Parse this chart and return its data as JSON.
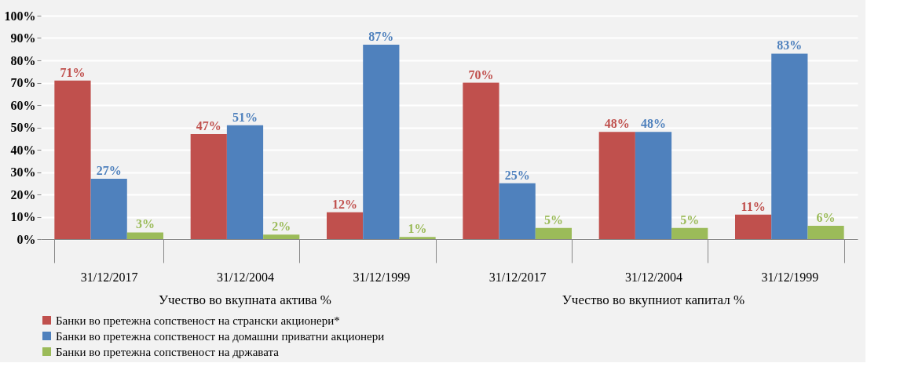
{
  "chart_data": {
    "type": "bar",
    "categories": [
      "31/12/2017",
      "31/12/2004",
      "31/12/1999",
      "31/12/2017",
      "31/12/2004",
      "31/12/1999"
    ],
    "series": [
      {
        "name": "Банки во претежна сопственост на странски акционери*",
        "color": "#c0504d",
        "values": [
          71,
          47,
          12,
          70,
          48,
          11
        ],
        "value_labels": [
          "71%",
          "47%",
          "12%",
          "70%",
          "48%",
          "11%"
        ]
      },
      {
        "name": "Банки во претежна сопственост на домашни приватни акционери",
        "color": "#4f81bd",
        "values": [
          27,
          51,
          87,
          25,
          48,
          83
        ],
        "value_labels": [
          "27%",
          "51%",
          "87%",
          "25%",
          "48%",
          "83%"
        ]
      },
      {
        "name": "Банки во претежна сопственост на државата",
        "color": "#9bbb59",
        "values": [
          3,
          2,
          1,
          5,
          5,
          6
        ],
        "value_labels": [
          "3%",
          "2%",
          "1%",
          "5%",
          "5%",
          "6%"
        ]
      }
    ],
    "ylim": [
      0,
      100
    ],
    "yticks": [
      {
        "value": 0,
        "label": "0%"
      },
      {
        "value": 10,
        "label": "10%"
      },
      {
        "value": 20,
        "label": "20%"
      },
      {
        "value": 30,
        "label": "30%"
      },
      {
        "value": 40,
        "label": "40%"
      },
      {
        "value": 50,
        "label": "50%"
      },
      {
        "value": 60,
        "label": "60%"
      },
      {
        "value": 70,
        "label": "70%"
      },
      {
        "value": 80,
        "label": "80%"
      },
      {
        "value": 90,
        "label": "90%"
      },
      {
        "value": 100,
        "label": "100%"
      }
    ],
    "annotations": [
      "Учество во вкупната актива %",
      "Учество во вкупниот капитал %"
    ],
    "grid": "y",
    "legend": "bottom"
  }
}
